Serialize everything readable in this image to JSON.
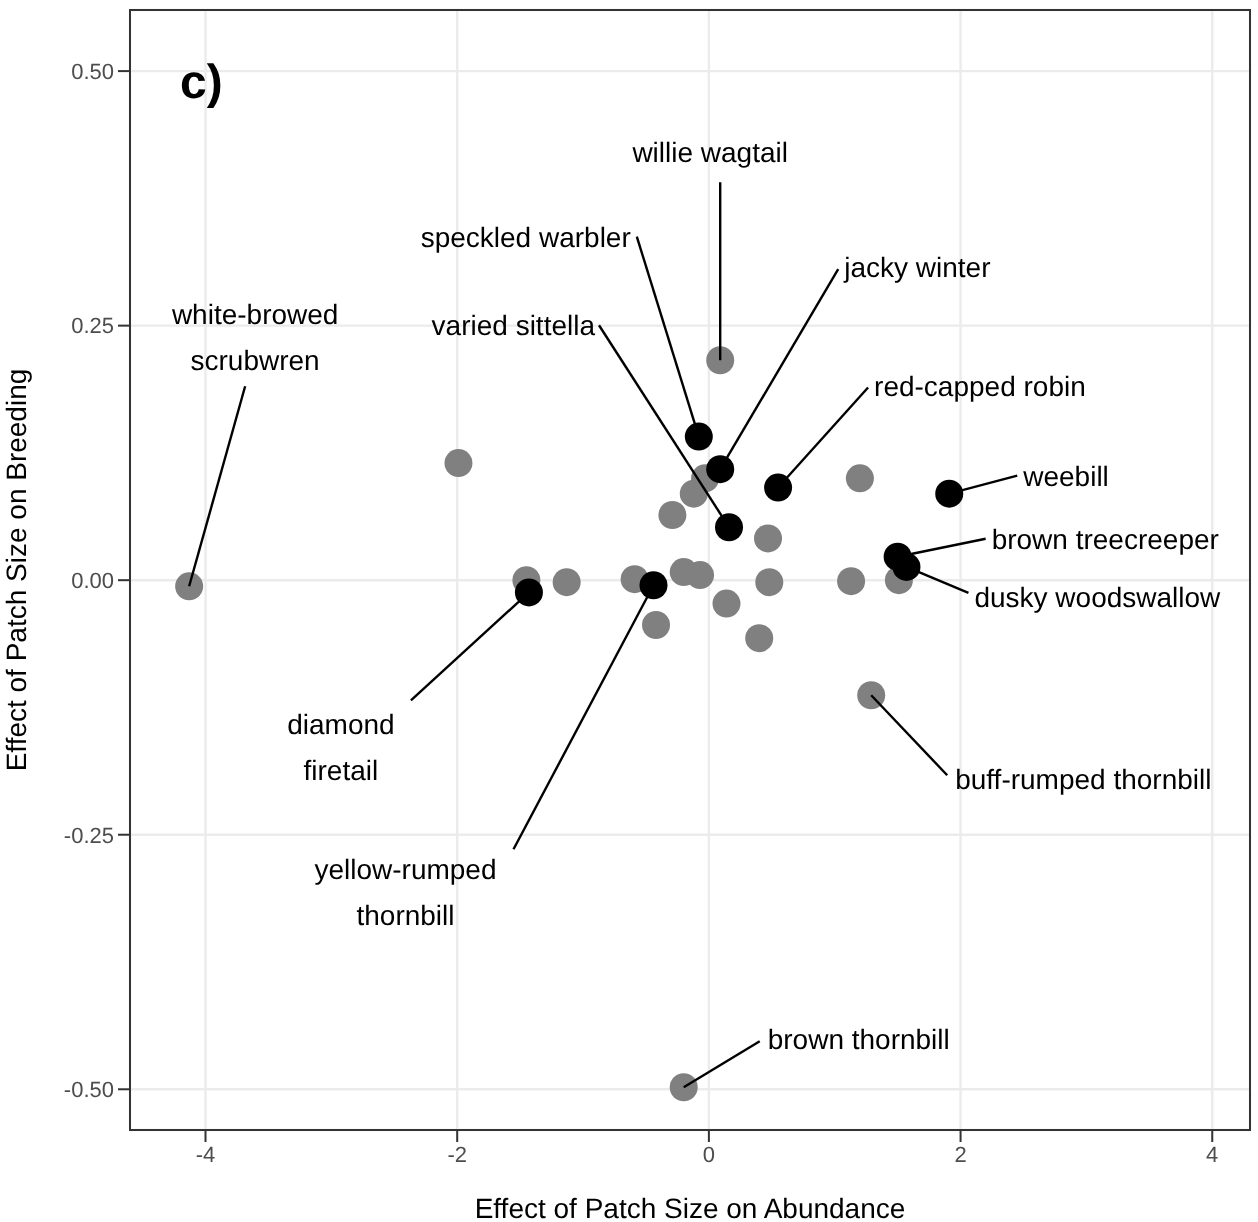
{
  "chart_data": {
    "type": "scatter",
    "title": "c)",
    "xlabel": "Effect of Patch Size on Abundance",
    "ylabel": "Effect of Patch Size on Breeding",
    "xlim": [
      -4.6,
      4.3
    ],
    "xticks": [
      -4,
      -2,
      0,
      2,
      4
    ],
    "ylim": [
      -0.54,
      0.56
    ],
    "yticks": [
      {
        "value": -0.5,
        "label": "-0.50"
      },
      {
        "value": -0.25,
        "label": "-0.25"
      },
      {
        "value": 0,
        "label": "0.00"
      },
      {
        "value": 0.25,
        "label": "0.25"
      },
      {
        "value": 0.5,
        "label": "0.50"
      }
    ],
    "grid": true,
    "marker": "circle",
    "series": [
      {
        "color": "#808080",
        "x": [
          0.09,
          -1.99,
          1.2,
          -0.03,
          -0.12,
          -0.29,
          0.47,
          -1.45,
          -1.13,
          -0.59,
          -0.2,
          -0.07,
          0.48,
          1.13,
          1.51,
          0.14,
          -0.42,
          0.4,
          -4.13,
          1.29,
          -0.2
        ],
        "values": [
          0.216,
          0.115,
          0.1,
          0.1,
          0.085,
          0.064,
          0.041,
          0.0,
          -0.002,
          0.001,
          0.008,
          0.005,
          -0.002,
          -0.001,
          0.0,
          -0.023,
          -0.044,
          -0.057,
          -0.006,
          -0.113,
          -0.498
        ]
      },
      {
        "color": "#000000",
        "x": [
          -0.08,
          0.09,
          0.55,
          0.16,
          -1.43,
          -0.44,
          1.91,
          1.5,
          1.57
        ],
        "values": [
          0.141,
          0.109,
          0.091,
          0.052,
          -0.012,
          -0.005,
          0.085,
          0.023,
          0.013
        ]
      }
    ],
    "annotations": [
      {
        "text": "willie wagtail",
        "x": 0.09,
        "y": 0.216
      },
      {
        "text": "speckled warbler",
        "x": -0.08,
        "y": 0.141
      },
      {
        "text": "jacky winter",
        "x": 0.09,
        "y": 0.109
      },
      {
        "text": "white-browed scrubwren",
        "x": -4.13,
        "y": -0.006
      },
      {
        "text": "varied sittella",
        "x": 0.16,
        "y": 0.052
      },
      {
        "text": "red-capped robin",
        "x": 0.55,
        "y": 0.091
      },
      {
        "text": "weebill",
        "x": 1.91,
        "y": 0.085
      },
      {
        "text": "brown treecreeper",
        "x": 1.5,
        "y": 0.023
      },
      {
        "text": "dusky woodswallow",
        "x": 1.57,
        "y": 0.013
      },
      {
        "text": "buff-rumped thornbill",
        "x": 1.29,
        "y": -0.113
      },
      {
        "text": "diamond firetail",
        "x": -1.43,
        "y": -0.012
      },
      {
        "text": "yellow-rumped thornbill",
        "x": -0.44,
        "y": -0.005
      },
      {
        "text": "brown thornbill",
        "x": -0.2,
        "y": -0.498
      }
    ]
  }
}
